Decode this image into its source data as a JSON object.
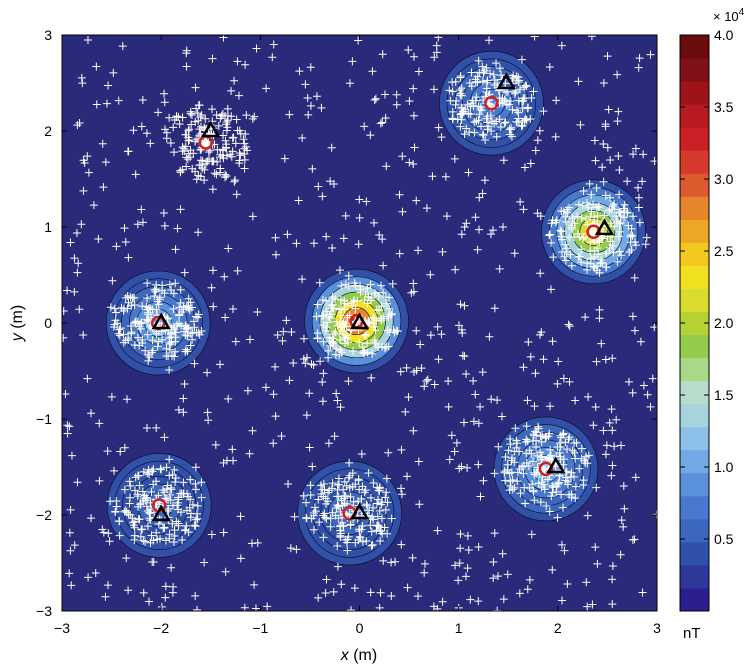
{
  "chart_data": {
    "type": "contour",
    "xlabel_var": "x",
    "xlabel_unit": " (m)",
    "ylabel_var": "y",
    "ylabel_unit": " (m)",
    "xlim": [
      -3,
      3
    ],
    "ylim": [
      -3,
      3
    ],
    "xticks": [
      -3,
      -2,
      -1,
      0,
      1,
      2,
      3
    ],
    "yticks": [
      -3,
      -2,
      -1,
      0,
      1,
      2,
      3
    ],
    "xtick_labels": [
      "−3",
      "−2",
      "−1",
      "0",
      "1",
      "2",
      "3"
    ],
    "ytick_labels": [
      "−3",
      "−2",
      "−1",
      "0",
      "1",
      "2",
      "3"
    ],
    "colorbar": {
      "label": "nT",
      "multiplier_base": "× 10",
      "multiplier_exp": "4",
      "range": [
        0,
        4.0
      ],
      "ticks": [
        0.5,
        1.0,
        1.5,
        2.0,
        2.5,
        3.0,
        3.5,
        4.0
      ],
      "tick_labels": [
        "0.5",
        "1.0",
        "1.5",
        "2.0",
        "2.5",
        "3.0",
        "3.5",
        "4.0"
      ],
      "colors": [
        "#2b1f8f",
        "#2d3899",
        "#3150a8",
        "#3d66bd",
        "#4a78cc",
        "#5b90dc",
        "#73a8e6",
        "#8dc0e8",
        "#a6d3dc",
        "#b8dccb",
        "#a9d889",
        "#92cc4a",
        "#b4d234",
        "#d9dc2e",
        "#f1e121",
        "#f3c921",
        "#eba725",
        "#e5852c",
        "#dc5a2d",
        "#d63a2d",
        "#cc2027",
        "#b81a22",
        "#9d1318",
        "#80101a",
        "#6a0c0e"
      ],
      "background": "#2a2a7a"
    },
    "sources": [
      {
        "true": [
          -1.5,
          2.0
        ],
        "estimated": [
          -1.55,
          1.88
        ],
        "peak": 0.0
      },
      {
        "true": [
          1.48,
          2.5
        ],
        "estimated": [
          1.33,
          2.29
        ],
        "peak": 0.8
      },
      {
        "true": [
          2.47,
          0.98
        ],
        "estimated": [
          2.36,
          0.95
        ],
        "peak": 2.5
      },
      {
        "true": [
          -2.0,
          0.0
        ],
        "estimated": [
          -2.03,
          0.0
        ],
        "peak": 1.1
      },
      {
        "true": [
          0.0,
          0.0
        ],
        "estimated": [
          -0.03,
          0.02
        ],
        "peak": 3.3
      },
      {
        "true": [
          1.98,
          -1.5
        ],
        "estimated": [
          1.88,
          -1.52
        ],
        "peak": 1.2
      },
      {
        "true": [
          -2.0,
          -2.0
        ],
        "estimated": [
          -2.02,
          -1.9
        ],
        "peak": 0.6
      },
      {
        "true": [
          0.0,
          -1.98
        ],
        "estimated": [
          -0.1,
          -1.98
        ],
        "peak": 0.6
      }
    ],
    "markers": {
      "true_source": "black triangle",
      "estimated_source": "red circle",
      "measurement": "white plus"
    }
  }
}
